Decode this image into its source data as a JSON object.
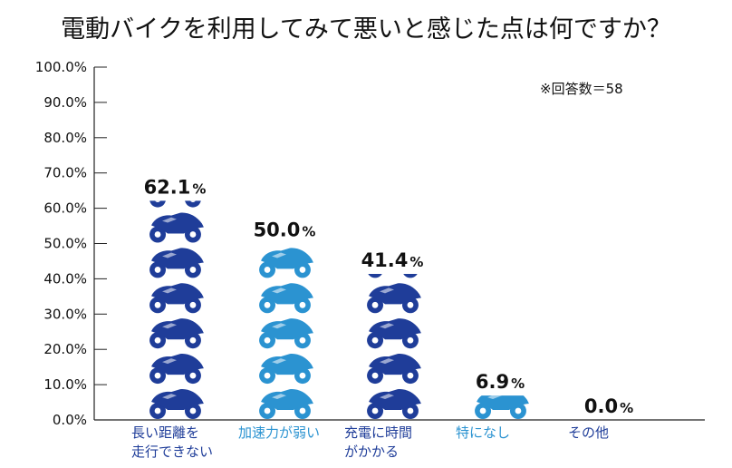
{
  "chart_data": {
    "type": "bar",
    "title": "電動バイクを利用してみて悪いと感じた点は何ですか？",
    "annotation": "※回答数＝58",
    "categories": [
      {
        "lines": [
          "長い距離を",
          "走行できない"
        ]
      },
      {
        "lines": [
          "加速力が弱い"
        ]
      },
      {
        "lines": [
          "充電に時間",
          "がかかる"
        ]
      },
      {
        "lines": [
          "特になし"
        ]
      },
      {
        "lines": [
          "その他"
        ]
      }
    ],
    "values": [
      62.1,
      50.0,
      41.4,
      6.9,
      0.0
    ],
    "value_labels": [
      "62.1",
      "50.0",
      "41.4",
      "6.9",
      "0.0"
    ],
    "percent_sign": "%",
    "colors": [
      "#1f3d99",
      "#2b93d1",
      "#1f3d99",
      "#2b93d1",
      "#1f3d99"
    ],
    "ylim": [
      0,
      100
    ],
    "yticks": [
      0,
      10,
      20,
      30,
      40,
      50,
      60,
      70,
      80,
      90,
      100
    ],
    "ytick_labels": [
      "0.0%",
      "10.0%",
      "20.0%",
      "30.0%",
      "40.0%",
      "50.0%",
      "60.0%",
      "70.0%",
      "80.0%",
      "90.0%",
      "100.0%"
    ],
    "mark_icon": "motorcycle-icon",
    "grid": false
  }
}
